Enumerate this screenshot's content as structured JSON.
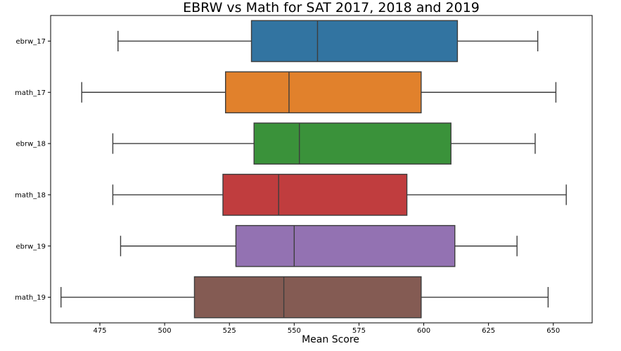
{
  "chart_data": {
    "type": "boxplot",
    "orientation": "horizontal",
    "title": "EBRW vs Math for SAT 2017, 2018 and 2019",
    "xlabel": "Mean Score",
    "ylabel": "",
    "xlim": [
      456,
      665
    ],
    "xticks": [
      475,
      500,
      525,
      550,
      575,
      600,
      625,
      650
    ],
    "grid": false,
    "legend": "none",
    "series": [
      {
        "name": "ebrw_17",
        "color": "#3274a1",
        "whisker_low": 482,
        "q1": 533.5,
        "median": 559,
        "q3": 613,
        "whisker_high": 644
      },
      {
        "name": "math_17",
        "color": "#e1812c",
        "whisker_low": 468,
        "q1": 523.5,
        "median": 548,
        "q3": 599,
        "whisker_high": 651
      },
      {
        "name": "ebrw_18",
        "color": "#3a923a",
        "whisker_low": 480,
        "q1": 534.5,
        "median": 552,
        "q3": 610.5,
        "whisker_high": 643
      },
      {
        "name": "math_18",
        "color": "#c03d3e",
        "whisker_low": 480,
        "q1": 522.5,
        "median": 544,
        "q3": 593.5,
        "whisker_high": 655
      },
      {
        "name": "ebrw_19",
        "color": "#9372b2",
        "whisker_low": 483,
        "q1": 527.5,
        "median": 550,
        "q3": 612,
        "whisker_high": 636
      },
      {
        "name": "math_19",
        "color": "#845b53",
        "whisker_low": 460,
        "q1": 511.5,
        "median": 546,
        "q3": 599,
        "whisker_high": 648
      }
    ]
  }
}
